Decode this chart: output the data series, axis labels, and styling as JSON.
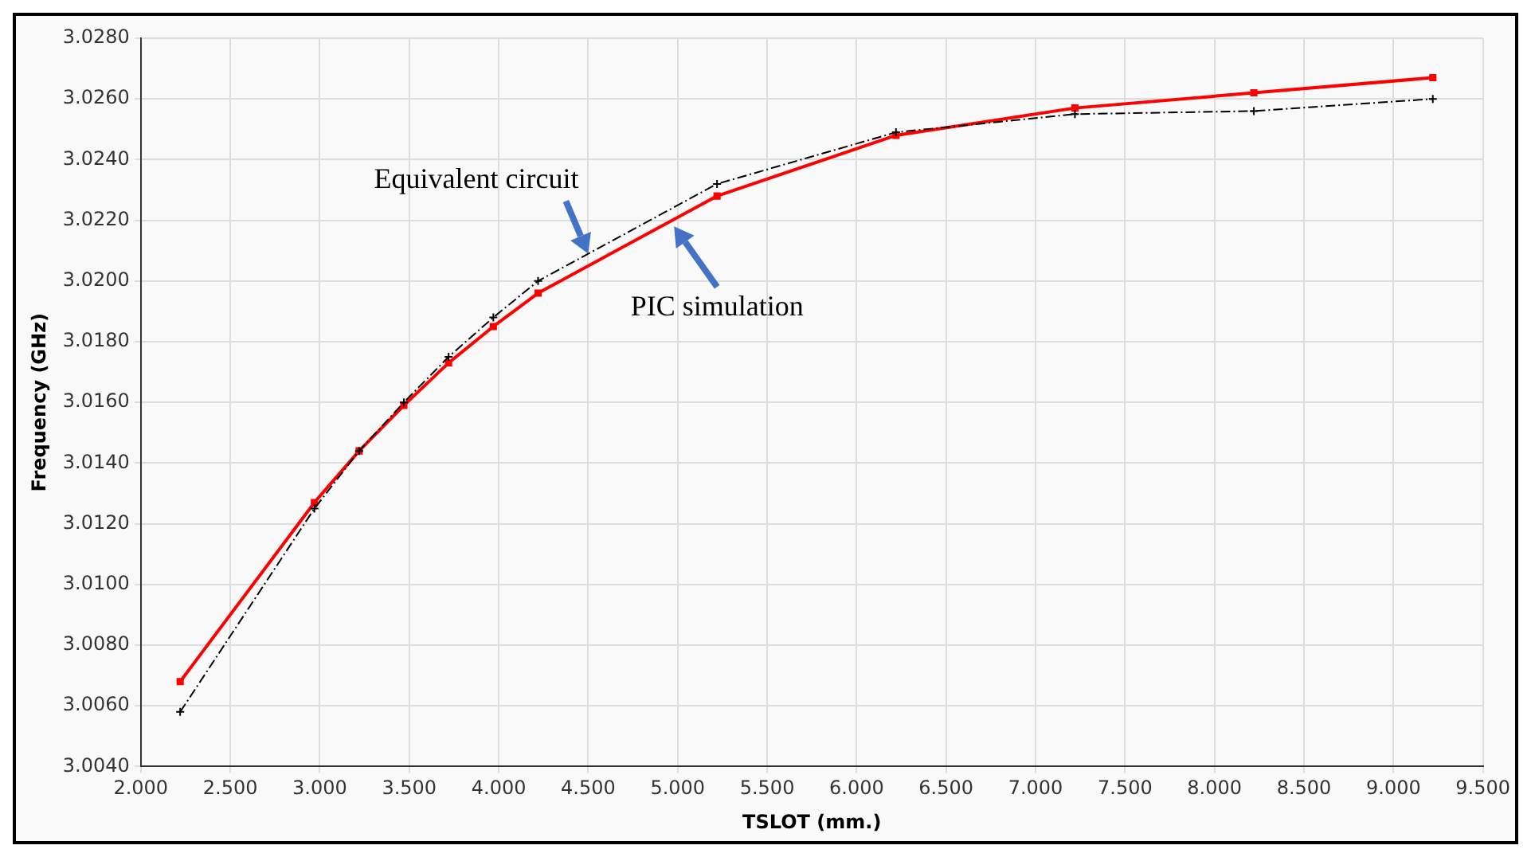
{
  "chart_data": {
    "type": "line",
    "xlabel": "TSLOT (mm.)",
    "ylabel": "Frequency (GHz)",
    "xlim": [
      2,
      9.5
    ],
    "ylim": [
      3.004,
      3.028
    ],
    "xticks": [
      {
        "value": 2,
        "label": "2.000"
      },
      {
        "value": 2.5,
        "label": "2.500"
      },
      {
        "value": 3,
        "label": "3.000"
      },
      {
        "value": 3.5,
        "label": "3.500"
      },
      {
        "value": 4,
        "label": "4.000"
      },
      {
        "value": 4.5,
        "label": "4.500"
      },
      {
        "value": 5,
        "label": "5.000"
      },
      {
        "value": 5.5,
        "label": "5.500"
      },
      {
        "value": 6,
        "label": "6.000"
      },
      {
        "value": 6.5,
        "label": "6.500"
      },
      {
        "value": 7,
        "label": "7.000"
      },
      {
        "value": 7.5,
        "label": "7.500"
      },
      {
        "value": 8,
        "label": "8.000"
      },
      {
        "value": 8.5,
        "label": "8.500"
      },
      {
        "value": 9,
        "label": "9.000"
      },
      {
        "value": 9.5,
        "label": "9.500"
      }
    ],
    "yticks": [
      {
        "value": 3.004,
        "label": "3.0040"
      },
      {
        "value": 3.006,
        "label": "3.0060"
      },
      {
        "value": 3.008,
        "label": "3.0080"
      },
      {
        "value": 3.01,
        "label": "3.0100"
      },
      {
        "value": 3.012,
        "label": "3.0120"
      },
      {
        "value": 3.014,
        "label": "3.0140"
      },
      {
        "value": 3.016,
        "label": "3.0160"
      },
      {
        "value": 3.018,
        "label": "3.0180"
      },
      {
        "value": 3.02,
        "label": "3.0200"
      },
      {
        "value": 3.022,
        "label": "3.0220"
      },
      {
        "value": 3.024,
        "label": "3.0240"
      },
      {
        "value": 3.026,
        "label": "3.0260"
      },
      {
        "value": 3.028,
        "label": "3.0280"
      }
    ],
    "x": [
      2.22,
      2.97,
      3.22,
      3.47,
      3.72,
      3.97,
      4.22,
      5.22,
      6.22,
      7.22,
      8.22,
      9.22
    ],
    "series": [
      {
        "color": "#000000",
        "line_style": "dashed",
        "marker": "cross",
        "values": [
          3.0058,
          3.0125,
          3.0144,
          3.016,
          3.0175,
          3.0188,
          3.02,
          3.0232,
          3.0249,
          3.0255,
          3.0256,
          3.026
        ]
      },
      {
        "color": "#ff0000",
        "line_style": "solid",
        "marker": "square",
        "values": [
          3.0068,
          3.0127,
          3.0144,
          3.0159,
          3.0173,
          3.0185,
          3.0196,
          3.0228,
          3.0248,
          3.0257,
          3.0262,
          3.0267
        ]
      }
    ],
    "annotations": [
      {
        "text": "Equivalent circuit",
        "x": 4.5,
        "y": 3.0209
      },
      {
        "text": "PIC simulation",
        "x": 4.98,
        "y": 3.0218
      }
    ],
    "grid": true,
    "legend": false
  }
}
